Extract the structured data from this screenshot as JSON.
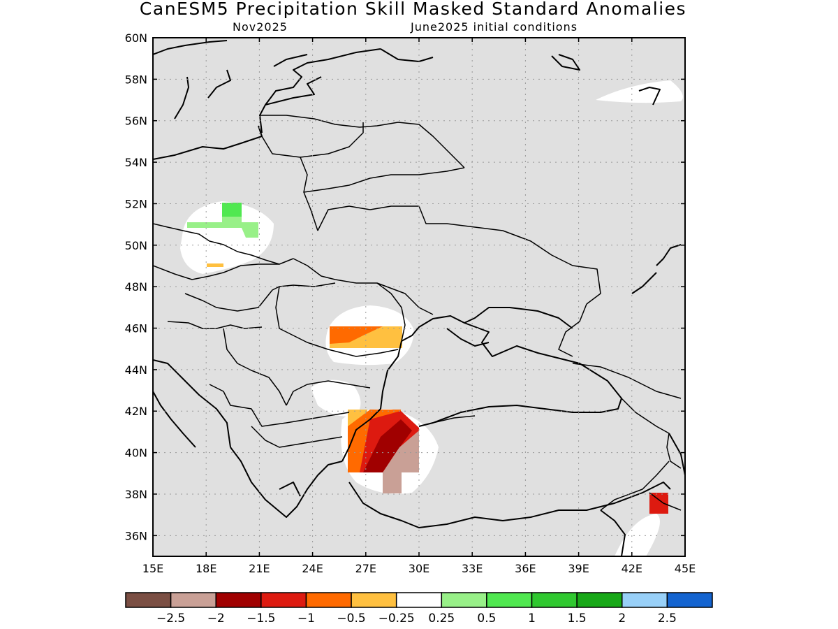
{
  "title": "CanESM5 Precipitation Skill Masked Standard Anomalies",
  "subtitle_left": "Nov2025",
  "subtitle_right": "June2025 initial conditions",
  "map": {
    "lon_range": [
      15,
      45
    ],
    "lat_range": [
      35,
      60
    ],
    "lon_ticks": [
      "15E",
      "18E",
      "21E",
      "24E",
      "27E",
      "30E",
      "33E",
      "36E",
      "39E",
      "42E",
      "45E"
    ],
    "lat_ticks": [
      "60N",
      "58N",
      "56N",
      "54N",
      "52N",
      "50N",
      "48N",
      "46N",
      "44N",
      "42N",
      "40N",
      "38N",
      "36N"
    ],
    "mask_color": "#e0e0e0",
    "grid": "dotted"
  },
  "colorbar": {
    "colors": [
      "#7b4f44",
      "#c9a096",
      "#a00000",
      "#dd1a10",
      "#ff6a00",
      "#ffc040",
      "#ffffff",
      "#98f088",
      "#50e850",
      "#30c830",
      "#18a818",
      "#98d0f8",
      "#1464d0"
    ],
    "labels": [
      "−2.5",
      "−2",
      "−1.5",
      "−1",
      "−0.5",
      "−0.25",
      "0.25",
      "0.5",
      "1",
      "1.5",
      "2",
      "2.5"
    ]
  }
}
